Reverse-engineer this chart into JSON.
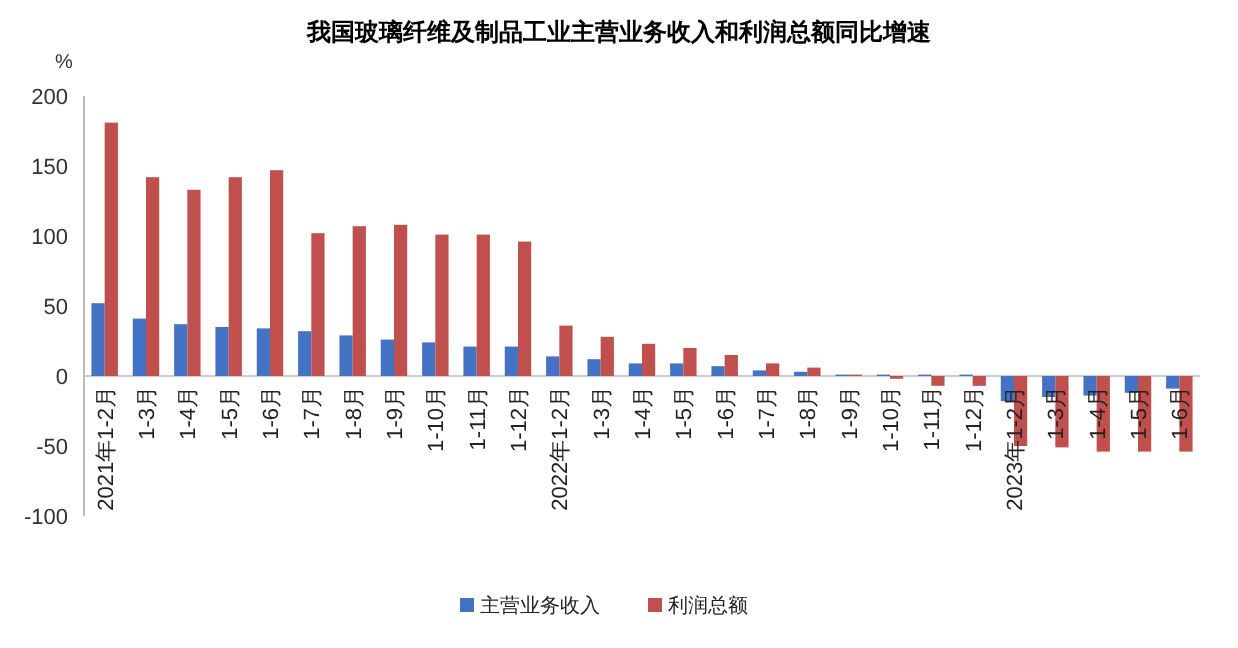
{
  "chart_data": {
    "type": "bar",
    "title": "我国玻璃纤维及制品工业主营业务收入和利润总额同比增速",
    "ylabel": "%",
    "categories": [
      "2021年1-2月",
      "1-3月",
      "1-4月",
      "1-5月",
      "1-6月",
      "1-7月",
      "1-8月",
      "1-9月",
      "1-10月",
      "1-11月",
      "1-12月",
      "2022年1-2月",
      "1-3月",
      "1-4月",
      "1-5月",
      "1-6月",
      "1-7月",
      "1-8月",
      "1-9月",
      "1-10月",
      "1-11月",
      "1-12月",
      "2023年1-2月",
      "1-3月",
      "1-4月",
      "1-5月",
      "1-6月"
    ],
    "series": [
      {
        "name": "主营业务收入",
        "color": "#4472c4",
        "values": [
          52,
          41,
          37,
          35,
          34,
          32,
          29,
          26,
          24,
          21,
          21,
          14,
          12,
          9,
          9,
          7,
          4,
          3,
          1,
          1,
          1,
          1,
          -18,
          -15,
          -14,
          -12,
          -9
        ]
      },
      {
        "name": "利润总额",
        "color": "#c0504d",
        "values": [
          181,
          142,
          133,
          142,
          147,
          102,
          107,
          108,
          101,
          101,
          96,
          36,
          28,
          23,
          20,
          15,
          9,
          6,
          1,
          -2,
          -7,
          -7,
          -50,
          -51,
          -54,
          -54,
          -54
        ]
      }
    ],
    "ylim": [
      -100,
      200
    ],
    "yticks": [
      -100,
      -50,
      0,
      50,
      100,
      150,
      200
    ],
    "grid": false,
    "legend": "bottom"
  }
}
